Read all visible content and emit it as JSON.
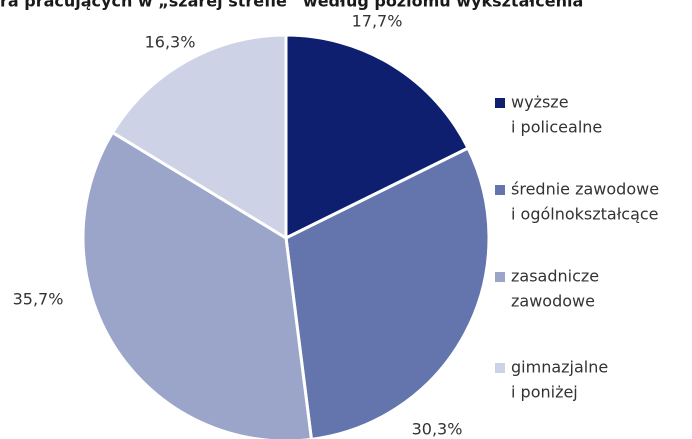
{
  "chart_data": {
    "type": "pie",
    "title": "ra pracujących w „szarej strefie” według poziomu wykształcenia",
    "categories": [
      [
        "wyższe",
        "i policealne"
      ],
      [
        "średnie zawodowe",
        "i ogólnokształcące"
      ],
      [
        "zasadnicze",
        "zawodowe"
      ],
      [
        "gimnazjalne",
        "i poniżej"
      ]
    ],
    "values": [
      17.7,
      30.3,
      35.7,
      16.3
    ],
    "value_labels": [
      "17,7%",
      "30,3%",
      "35,7%",
      "16,3%"
    ],
    "colors": [
      "#0d1f6e",
      "#6474ad",
      "#9ba5c9",
      "#cdd2e6"
    ],
    "legend": "right"
  }
}
